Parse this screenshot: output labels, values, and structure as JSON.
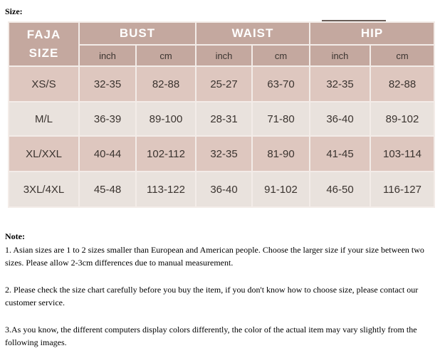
{
  "size_label": "Size:",
  "table": {
    "size_header": [
      "FAJA",
      "SIZE"
    ],
    "groups": [
      "BUST",
      "WAIST",
      "HIP"
    ],
    "units": [
      "inch",
      "cm",
      "inch",
      "cm",
      "inch",
      "cm"
    ],
    "rows": [
      [
        "XS/S",
        "32-35",
        "82-88",
        "25-27",
        "63-70",
        "32-35",
        "82-88"
      ],
      [
        "M/L",
        "36-39",
        "89-100",
        "28-31",
        "71-80",
        "36-40",
        "89-102"
      ],
      [
        "XL/XXL",
        "40-44",
        "102-112",
        "32-35",
        "81-90",
        "41-45",
        "103-114"
      ],
      [
        "3XL/4XL",
        "45-48",
        "113-122",
        "36-40",
        "91-102",
        "46-50",
        "116-127"
      ]
    ],
    "colors": {
      "header": "#c4a89f",
      "row_pink": "#dec7bf",
      "row_grey": "#e9e2dd"
    }
  },
  "notes": {
    "title": "Note:",
    "items": [
      "1. Asian sizes are 1 to 2 sizes smaller than European and American people. Choose the larger size if your size between two sizes. Please allow 2-3cm differences due to manual measurement.",
      "2. Please check the size chart carefully before you buy the item, if you don't know how to choose size, please contact our customer service.",
      "3.As you know, the different computers display colors differently, the color of the actual item may vary slightly from the following images."
    ]
  }
}
